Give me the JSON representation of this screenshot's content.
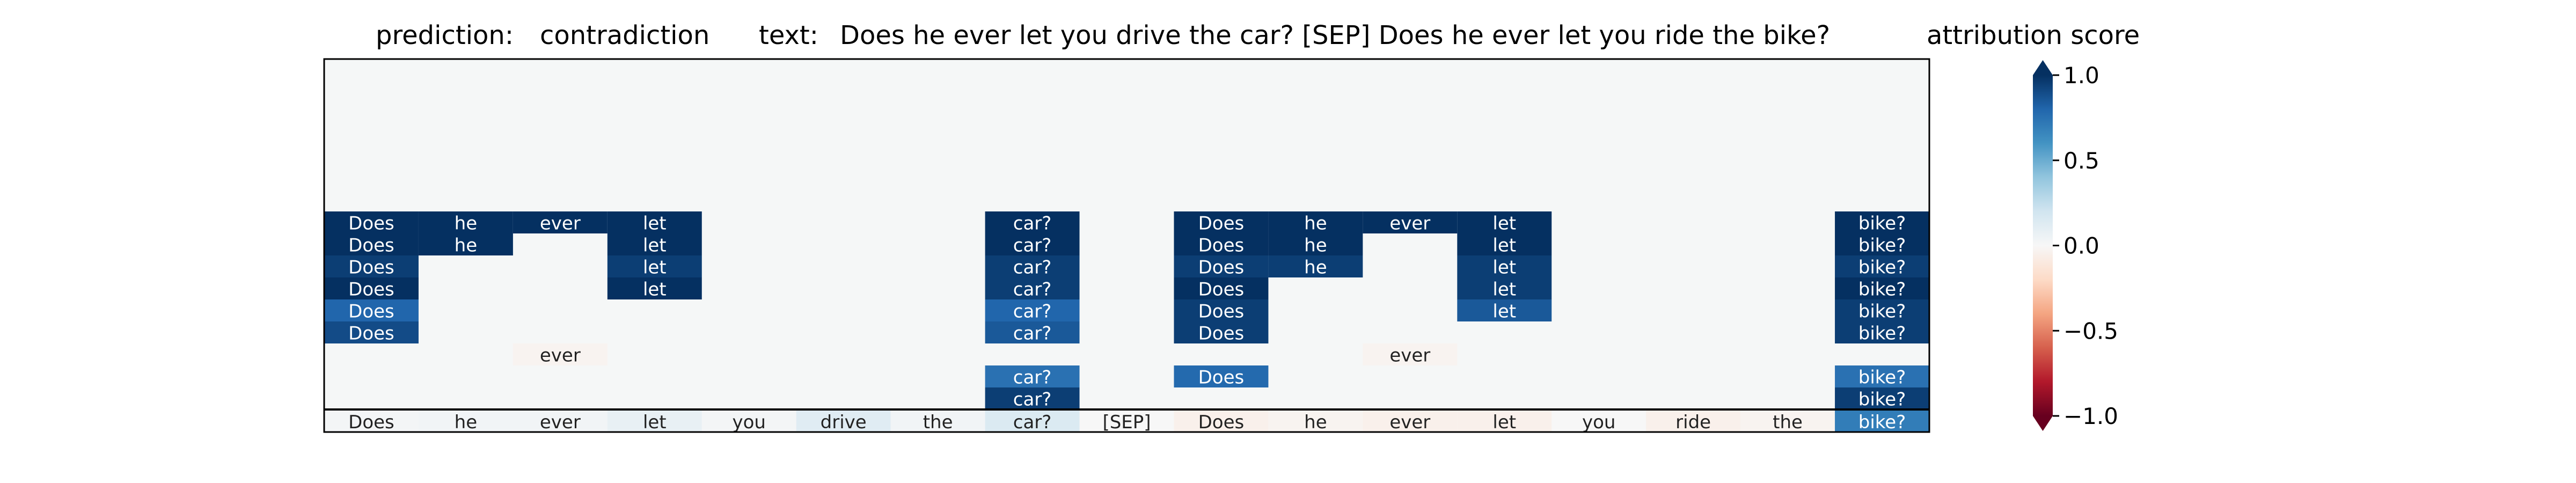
{
  "chart_data": {
    "type": "heatmap",
    "prediction_label": "prediction:",
    "prediction": "contradiction",
    "text_label": "text:",
    "text": "Does he ever let you drive the car? [SEP] Does he ever let you ride the bike?",
    "colorbar_title": "attribution score",
    "colorbar_ticks": [
      "1.0",
      "0.5",
      "0.0",
      "−0.5",
      "−1.0"
    ],
    "colorbar_tick_values": [
      1.0,
      0.5,
      0.0,
      -0.5,
      -1.0
    ],
    "clim": [
      -1.0,
      1.0
    ],
    "colormap": [
      "#67001f",
      "#b2182b",
      "#d6604d",
      "#f4a582",
      "#fddbc7",
      "#f7f7f7",
      "#d1e5f0",
      "#92c5de",
      "#4393c3",
      "#2166ac",
      "#053061"
    ],
    "background_color": "#f5f7f7",
    "tokens": [
      "Does",
      "he",
      "ever",
      "let",
      "you",
      "drive",
      "the",
      "car?",
      "[SEP]",
      "Does",
      "he",
      "ever",
      "let",
      "you",
      "ride",
      "the",
      "bike?"
    ],
    "token_scores": [
      0.02,
      0.03,
      0.03,
      0.08,
      0.02,
      0.12,
      0.03,
      0.15,
      0.0,
      -0.05,
      -0.03,
      -0.05,
      -0.05,
      0.0,
      -0.05,
      -0.03,
      0.7
    ],
    "rows": [
      [
        1.0,
        1.0,
        1.0,
        1.0,
        null,
        null,
        null,
        1.0,
        null,
        1.0,
        1.0,
        1.0,
        1.0,
        null,
        null,
        null,
        1.0
      ],
      [
        1.0,
        1.0,
        null,
        1.0,
        null,
        null,
        null,
        1.0,
        null,
        1.0,
        1.0,
        null,
        1.0,
        null,
        null,
        null,
        1.0
      ],
      [
        0.95,
        null,
        null,
        0.95,
        null,
        null,
        null,
        0.95,
        null,
        0.95,
        0.95,
        null,
        0.95,
        null,
        null,
        null,
        0.95
      ],
      [
        1.0,
        null,
        null,
        1.0,
        null,
        null,
        null,
        0.95,
        null,
        1.0,
        null,
        null,
        0.95,
        null,
        null,
        null,
        1.0
      ],
      [
        0.8,
        null,
        null,
        null,
        null,
        null,
        null,
        0.8,
        null,
        0.95,
        null,
        null,
        0.85,
        null,
        null,
        null,
        0.95
      ],
      [
        0.9,
        null,
        null,
        null,
        null,
        null,
        null,
        0.85,
        null,
        0.95,
        null,
        null,
        null,
        null,
        null,
        null,
        0.95
      ],
      [
        null,
        null,
        -0.03,
        null,
        null,
        null,
        null,
        null,
        null,
        null,
        null,
        -0.03,
        null,
        null,
        null,
        null,
        null
      ],
      [
        null,
        null,
        null,
        null,
        null,
        null,
        null,
        0.75,
        null,
        0.78,
        null,
        null,
        null,
        null,
        null,
        null,
        0.75
      ],
      [
        null,
        null,
        null,
        null,
        null,
        null,
        null,
        0.95,
        null,
        null,
        null,
        null,
        null,
        null,
        null,
        null,
        0.95
      ]
    ]
  }
}
